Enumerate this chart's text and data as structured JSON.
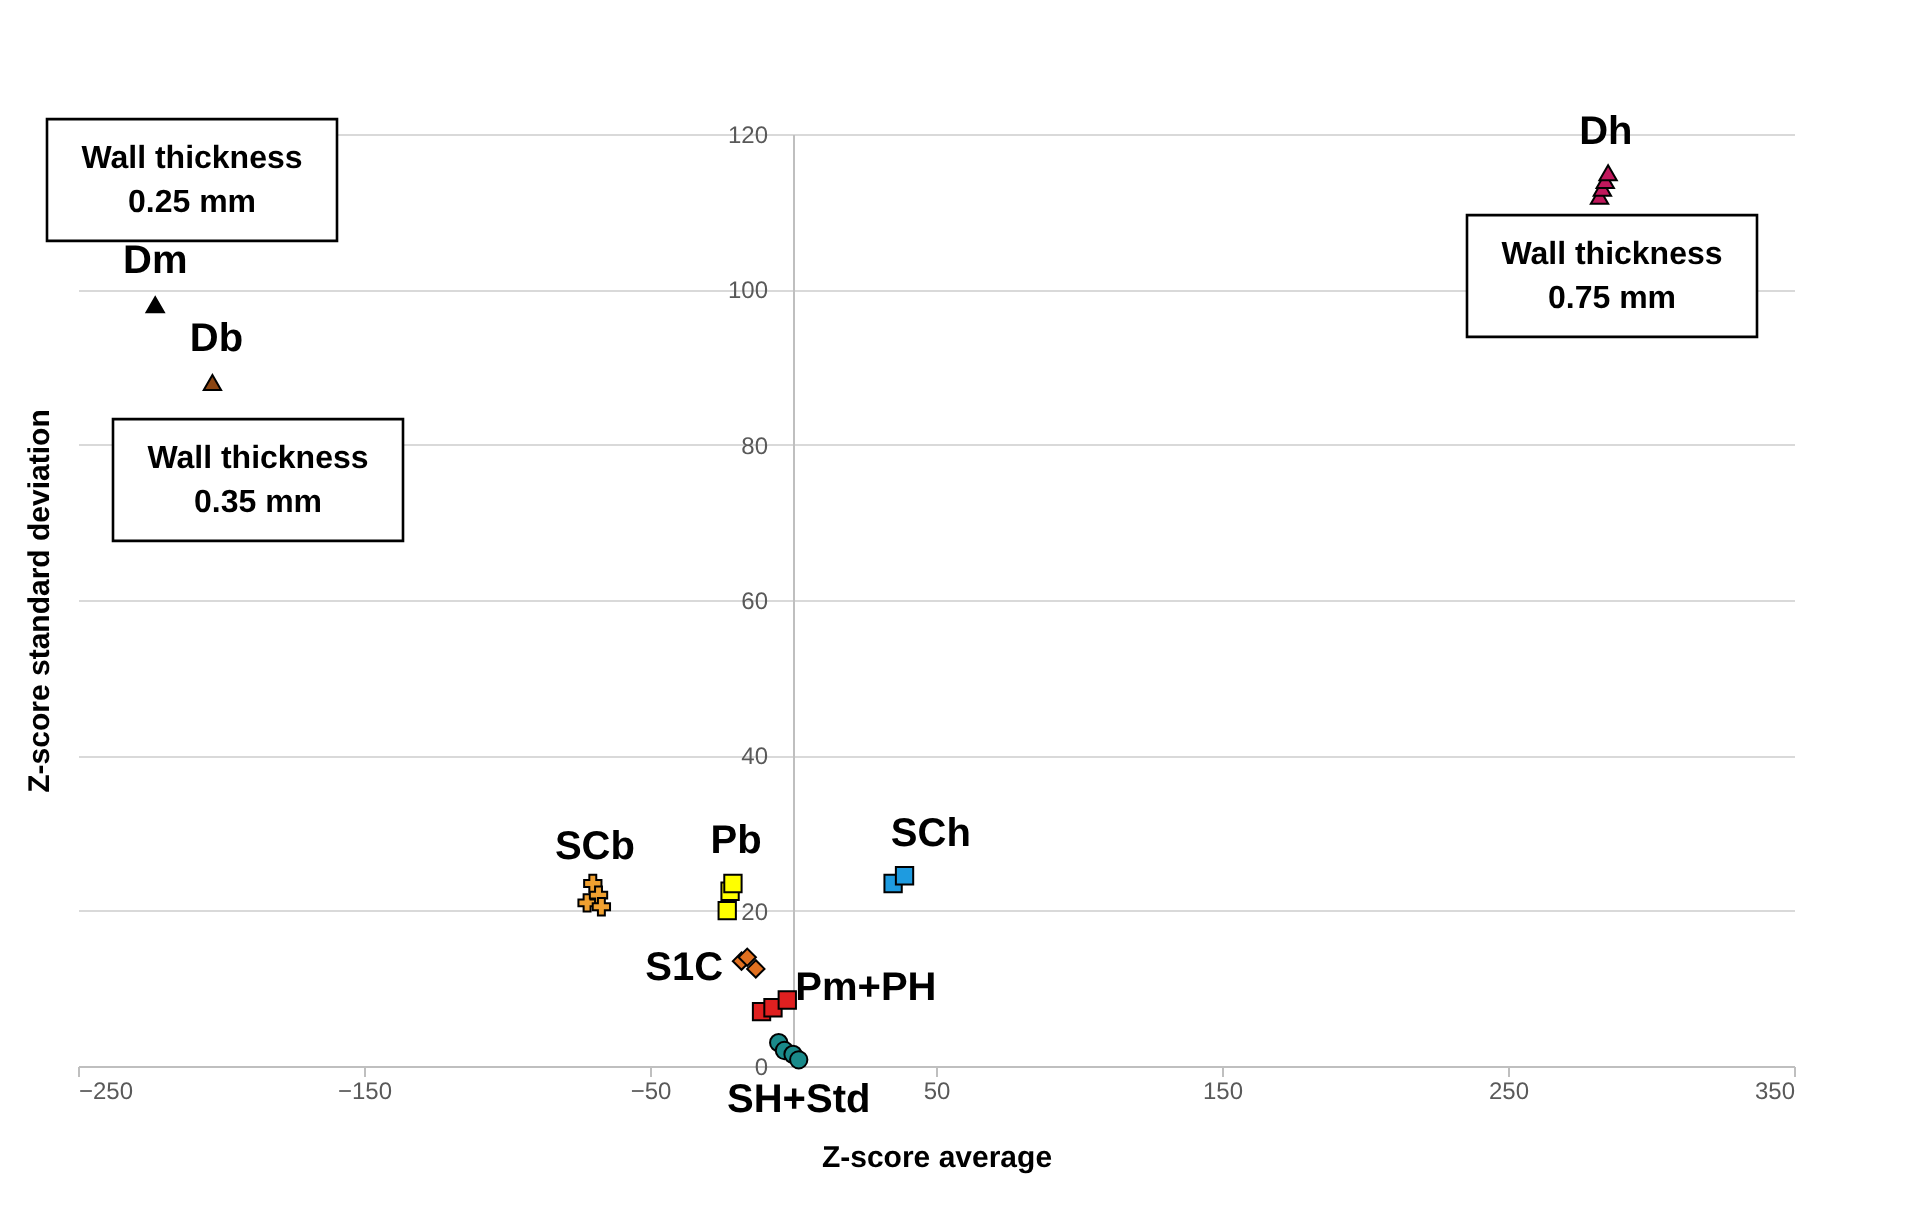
{
  "chart_data": {
    "type": "scatter",
    "xlabel": "Z-score average",
    "ylabel": "Z-score standard deviation",
    "xlim": [
      -250,
      350
    ],
    "xticks": [
      -250,
      -150,
      -50,
      50,
      150,
      250,
      350
    ],
    "ylim": [
      0,
      120
    ],
    "yticks": [
      0,
      20,
      40,
      60,
      80,
      100,
      120
    ],
    "grid": "y",
    "series": [
      {
        "name": "Dm",
        "color": "#000000",
        "marker": "triangle",
        "x": [
          -223
        ],
        "values": [
          98
        ]
      },
      {
        "name": "Db",
        "color": "#8b4513",
        "marker": "triangle",
        "x": [
          -203
        ],
        "values": [
          88
        ]
      },
      {
        "name": "Dh",
        "color": "#c0185c",
        "marker": "triangle",
        "x": [
          282,
          283,
          284,
          285
        ],
        "values": [
          112,
          113,
          114,
          115
        ]
      },
      {
        "name": "SCb",
        "color": "#f0a030",
        "marker": "cross",
        "x": [
          -72,
          -70,
          -68,
          -67
        ],
        "values": [
          21,
          23.5,
          22,
          20.5
        ]
      },
      {
        "name": "Pb",
        "color": "#ffff00",
        "marker": "square",
        "x": [
          -23,
          -22,
          -21
        ],
        "values": [
          20,
          22.5,
          23.5
        ]
      },
      {
        "name": "S1C",
        "color": "#e07020",
        "marker": "diamond",
        "x": [
          -18,
          -16,
          -13
        ],
        "values": [
          13.5,
          14,
          12.5
        ]
      },
      {
        "name": "Pm+PH",
        "color": "#e02020",
        "marker": "square",
        "x": [
          -11,
          -7,
          -2
        ],
        "values": [
          7,
          7.5,
          8.5
        ]
      },
      {
        "name": "SH+Std",
        "color": "#1a8a8a",
        "marker": "circle",
        "x": [
          -5,
          -3,
          0,
          2
        ],
        "values": [
          3,
          2,
          1.5,
          0.8
        ]
      },
      {
        "name": "SCh",
        "color": "#1e9be0",
        "marker": "square",
        "x": [
          35,
          39
        ],
        "values": [
          23.5,
          24.5
        ]
      }
    ],
    "annotations": [
      "Wall thickness\n0.25 mm",
      "Wall thickness\n0.35 mm",
      "Wall thickness\n0.75 mm"
    ]
  }
}
